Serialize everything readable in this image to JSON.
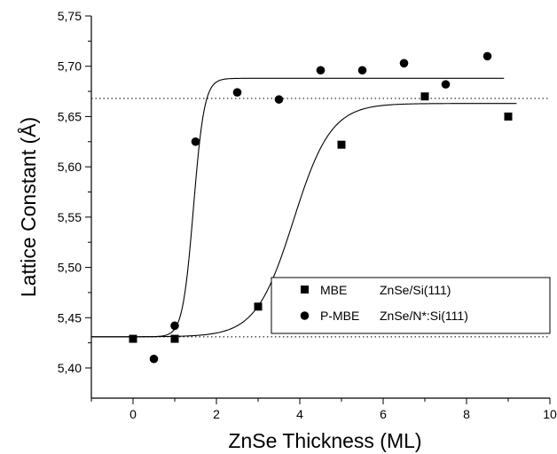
{
  "chart_data": {
    "type": "scatter",
    "xlabel": "ZnSe Thickness (ML)",
    "ylabel": "Lattice Constant (Å)",
    "xlim": [
      -1,
      10
    ],
    "ylim": [
      5.37,
      5.75
    ],
    "x_ticks": [
      0,
      2,
      4,
      6,
      8,
      10
    ],
    "x_tick_labels": [
      "0",
      "2",
      "4",
      "6",
      "8",
      "10"
    ],
    "y_ticks": [
      5.4,
      5.45,
      5.5,
      5.55,
      5.6,
      5.65,
      5.7,
      5.75
    ],
    "y_tick_labels": [
      "5,40",
      "5,45",
      "5,50",
      "5,55",
      "5,60",
      "5,65",
      "5,70",
      "5,75"
    ],
    "grid": false,
    "legend_position": "right",
    "series": [
      {
        "name": "MBE",
        "label": "ZnSe/Si(111)",
        "marker": "square",
        "x": [
          0,
          1,
          3,
          5,
          7,
          9
        ],
        "y": [
          5.429,
          5.429,
          5.461,
          5.622,
          5.67,
          5.65
        ]
      },
      {
        "name": "P-MBE",
        "label": "ZnSe/N*:Si(111)",
        "marker": "circle",
        "x": [
          0.5,
          1,
          1.5,
          2.5,
          3.5,
          4.5,
          5.5,
          6.5,
          7.5,
          8.5
        ],
        "y": [
          5.409,
          5.442,
          5.625,
          5.674,
          5.667,
          5.696,
          5.696,
          5.703,
          5.682,
          5.71
        ]
      }
    ],
    "fit_curves": [
      {
        "series": "P-MBE",
        "x_start": -1,
        "x_end": 8.9,
        "lower": 5.431,
        "upper": 5.688,
        "center": 1.45,
        "width": 0.13
      },
      {
        "series": "MBE",
        "x_start": -1,
        "x_end": 9.2,
        "lower": 5.431,
        "upper": 5.663,
        "center": 3.85,
        "width": 0.45
      }
    ],
    "reference_lines": [
      {
        "y": 5.668,
        "style": "dotted"
      },
      {
        "y": 5.431,
        "style": "dotted"
      }
    ]
  }
}
